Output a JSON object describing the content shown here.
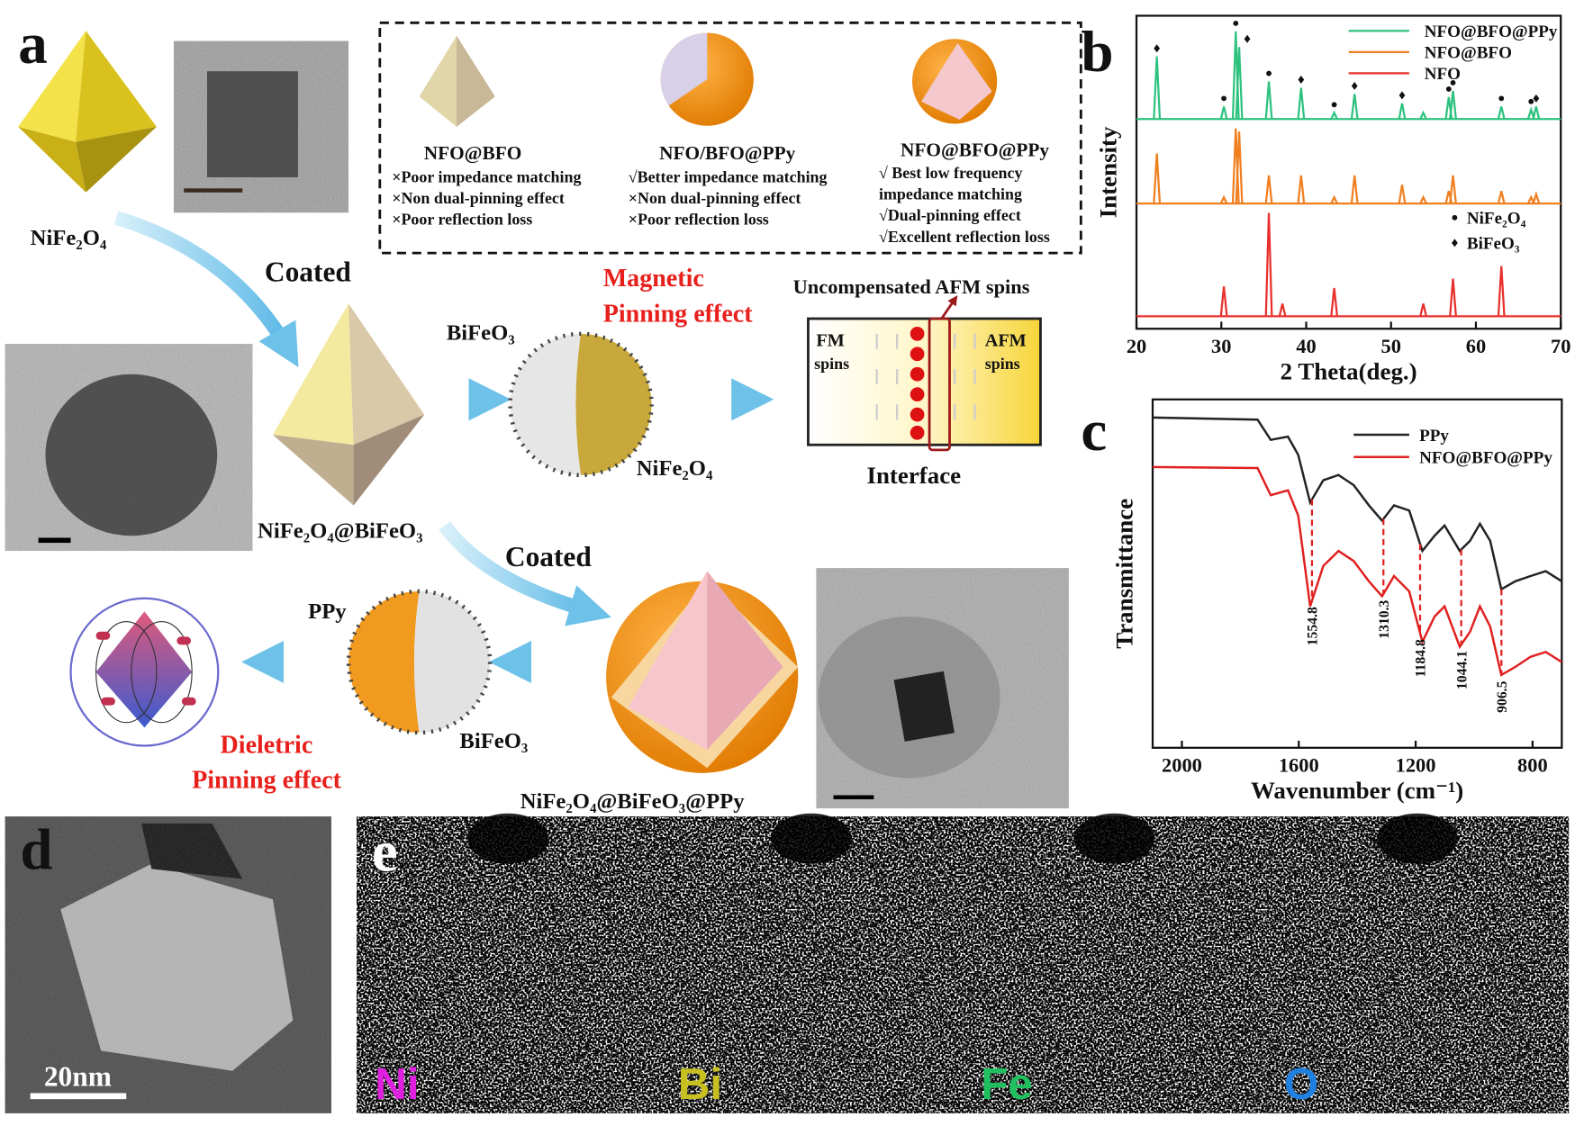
{
  "panels": {
    "a": {
      "label": "a",
      "nife2o4": "NiFe₂O₄",
      "coated_1": "Coated",
      "comparison": [
        {
          "title": "NFO@BFO",
          "lines": [
            "×Poor impedance matching",
            "×Non dual-pinning effect",
            "×Poor reflection loss"
          ]
        },
        {
          "title": "NFO/BFO@PPy",
          "lines": [
            "√Better impedance matching",
            "×Non dual-pinning effect",
            "×Poor reflection loss"
          ]
        },
        {
          "title": "NFO@BFO@PPy",
          "lines": [
            "√ Best low frequency",
            "impedance matching",
            "√Dual-pinning effect",
            "√Excellent reflection loss"
          ]
        }
      ],
      "magnetic_pinning": [
        "Magnetic",
        "Pinning effect"
      ],
      "uncompensated": "Uncompensated AFM spins",
      "circle_1": {
        "left": "BiFeO₃",
        "right": "NiFe₂O₄"
      },
      "fm": [
        "FM",
        "spins"
      ],
      "afm": [
        "AFM",
        "spins"
      ],
      "interface": "Interface",
      "nfo_bfo": "NiFe₂O₄@BiFeO₃",
      "coated_2": "Coated",
      "circle_2": {
        "left": "PPy",
        "right": "BiFeO₃"
      },
      "dielectric_pinning": [
        "Dieletric",
        "Pinning effect"
      ],
      "nfo_bfo_ppy": "NiFe₂O₄@BiFeO₃@PPy"
    },
    "b": {
      "label": "b"
    },
    "c": {
      "label": "c"
    },
    "d": {
      "label": "d",
      "scale_bar": "20nm"
    },
    "e": {
      "label": "e",
      "maps": [
        {
          "element": "Ni",
          "color": "#e020e0"
        },
        {
          "element": "Bi",
          "color": "#c8c020"
        },
        {
          "element": "Fe",
          "color": "#20c060"
        },
        {
          "element": "O",
          "color": "#2080e0"
        }
      ]
    }
  },
  "chart_data": [
    {
      "type": "peaks",
      "xlabel": "2 Theta(deg.)",
      "ylabel": "Intensity",
      "x": [
        22.4,
        30.3,
        31.7,
        32.1,
        35.6,
        37.2,
        39.4,
        43.3,
        45.7,
        51.3,
        53.8,
        56.8,
        57.3,
        63.0,
        66.5,
        67.1
      ],
      "peak_markers": [
        "diamond",
        "circle",
        "circle",
        "diamond",
        "circle",
        null,
        "diamond",
        "circle",
        "diamond",
        "diamond",
        null,
        "circle",
        "circle",
        "circle",
        "circle",
        "diamond"
      ],
      "series": [
        {
          "name": "NFO@BFO@PPy",
          "color": "#2ec27e",
          "baseline": 67,
          "values": [
            87,
            71,
            95,
            90,
            79,
            null,
            77,
            69,
            75,
            72,
            69,
            74,
            76,
            71,
            70,
            71
          ]
        },
        {
          "name": "NFO@BFO",
          "color": "#f07f20",
          "baseline": 40,
          "values": [
            56,
            42,
            64,
            63,
            49,
            null,
            49,
            42,
            49,
            46,
            42,
            44,
            49,
            44,
            42,
            43
          ]
        },
        {
          "name": "NFO",
          "color": "#e8302c",
          "baseline": 4,
          "values": [
            null,
            13.5,
            null,
            null,
            37,
            8,
            null,
            13,
            null,
            null,
            8,
            null,
            16,
            20,
            null,
            null
          ]
        }
      ],
      "phase_legend": [
        {
          "name": "NiFe₂O₄",
          "marker": "circle"
        },
        {
          "name": "BiFeO₃",
          "marker": "diamond"
        }
      ],
      "xlim": [
        20,
        70
      ],
      "xticks": [
        20,
        30,
        40,
        50,
        60,
        70
      ],
      "ylim": [
        0,
        100
      ]
    },
    {
      "type": "line",
      "xlabel": "Wavenumber (cm⁻¹)",
      "ylabel": "Transmittance",
      "x": [
        2100,
        1741,
        1696,
        1637,
        1602,
        1561,
        1516,
        1464,
        1412,
        1360,
        1315,
        1274,
        1222,
        1177,
        1135,
        1101,
        1049,
        1014,
        980,
        945,
        907,
        859,
        807,
        755,
        700
      ],
      "series": [
        {
          "name": "PPy",
          "color": "#222222",
          "values": [
            94.8,
            94.2,
            88.4,
            89.3,
            84.1,
            70.4,
            76.8,
            78.3,
            75.4,
            69.6,
            65.2,
            69.6,
            68.1,
            56.5,
            60.9,
            63.8,
            56.5,
            59.4,
            64.3,
            59.4,
            45.5,
            47.8,
            49.3,
            50.7,
            47.8
          ]
        },
        {
          "name": "NFO@BFO@PPy",
          "color": "#e02020",
          "values": [
            80.6,
            80.3,
            72.5,
            73.9,
            66.7,
            40.6,
            52.2,
            56.5,
            53.6,
            47.8,
            43.5,
            49.3,
            44.9,
            30.4,
            37.7,
            40.6,
            29.0,
            33.3,
            40.6,
            34.8,
            20.9,
            23.2,
            26.1,
            27.5,
            24.6
          ]
        }
      ],
      "annotations": [
        1554.8,
        1310.3,
        1184.8,
        1044.1,
        906.5
      ],
      "xlim": [
        2100,
        700
      ],
      "xticks": [
        2000,
        1600,
        1200,
        800
      ],
      "ylim": [
        0,
        100
      ]
    }
  ]
}
